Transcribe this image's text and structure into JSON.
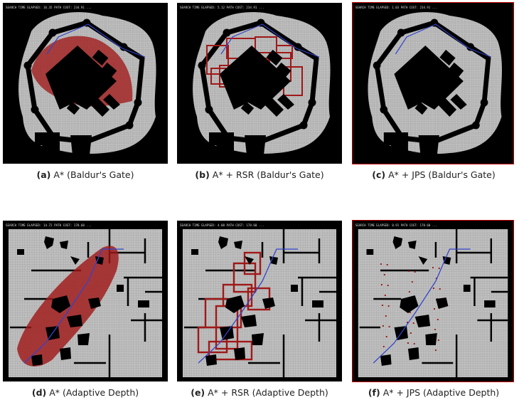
{
  "colors": {
    "background": "#000000",
    "floor": "#bfbfbf",
    "grid": "#8c8c8c",
    "expanded": "#a01818",
    "path": "#3344cc",
    "frame_highlight": "#c00000"
  },
  "panels": [
    {
      "id": "a",
      "map": "baldur",
      "method": "astar",
      "caption_letter": "(a)",
      "caption_text": "A* (Baldur's Gate)",
      "header": "SEARCH TIME ELAPSED: 16.35  PATH COST: 234.91  ..."
    },
    {
      "id": "b",
      "map": "baldur",
      "method": "rsr",
      "caption_letter": "(b)",
      "caption_text": "A* + RSR (Baldur's Gate)",
      "header": "SEARCH TIME ELAPSED: 5.12  PATH COST: 234.91  ..."
    },
    {
      "id": "c",
      "map": "baldur",
      "method": "jps",
      "caption_letter": "(c)",
      "caption_text": "A* + JPS (Baldur's Gate)",
      "header": "SEARCH TIME ELAPSED: 1.03  PATH COST: 234.91  ..."
    },
    {
      "id": "d",
      "map": "adaptive",
      "method": "astar",
      "caption_letter": "(d)",
      "caption_text": "A* (Adaptive Depth)",
      "header": "SEARCH TIME ELAPSED: 14.72  PATH COST: 178.60  ..."
    },
    {
      "id": "e",
      "map": "adaptive",
      "method": "rsr",
      "caption_letter": "(e)",
      "caption_text": "A* + RSR (Adaptive Depth)",
      "header": "SEARCH TIME ELAPSED: 4.08  PATH COST: 178.60  ..."
    },
    {
      "id": "f",
      "map": "adaptive",
      "method": "jps",
      "caption_letter": "(f)",
      "caption_text": "A* + JPS (Adaptive Depth)",
      "header": "SEARCH TIME ELAPSED: 0.91  PATH COST: 178.60  ..."
    }
  ]
}
